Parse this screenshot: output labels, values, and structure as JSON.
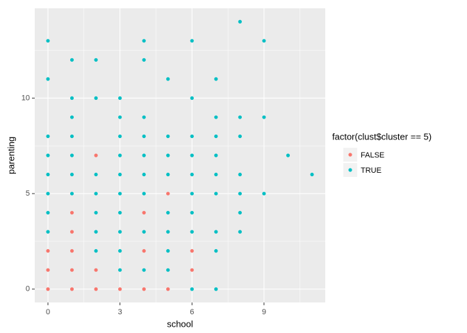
{
  "chart_data": {
    "type": "scatter",
    "x_label": "school",
    "y_label": "parenting",
    "legend_title": "factor(clust$cluster == 5)",
    "legend_position": "right",
    "xlim": [
      -0.55,
      11.55
    ],
    "ylim": [
      -0.7,
      14.7
    ],
    "xticks": [
      0,
      3,
      6,
      9
    ],
    "yticks": [
      0,
      5,
      10
    ],
    "grid": true,
    "series": [
      {
        "name": "FALSE",
        "color": "#F8766D",
        "x": [
          0,
          0,
          0,
          1,
          1,
          1,
          1,
          1,
          2,
          2,
          2,
          3,
          4,
          4,
          4,
          5,
          5,
          6,
          6
        ],
        "y": [
          2,
          1,
          0,
          4,
          3,
          2,
          1,
          0,
          7,
          1,
          0,
          0,
          4,
          2,
          0,
          5,
          0,
          2,
          1
        ]
      },
      {
        "name": "TRUE",
        "color": "#00BFC4",
        "x": [
          0,
          0,
          0,
          0,
          0,
          0,
          0,
          0,
          1,
          1,
          1,
          1,
          1,
          1,
          1,
          2,
          2,
          2,
          2,
          2,
          2,
          2,
          3,
          3,
          3,
          3,
          3,
          3,
          3,
          3,
          3,
          3,
          4,
          4,
          4,
          4,
          4,
          4,
          4,
          4,
          4,
          5,
          5,
          5,
          5,
          5,
          5,
          5,
          5,
          6,
          6,
          6,
          6,
          6,
          6,
          6,
          6,
          6,
          7,
          7,
          7,
          7,
          7,
          7,
          7,
          7,
          7,
          8,
          8,
          8,
          8,
          8,
          8,
          8,
          9,
          9,
          9,
          10,
          11
        ],
        "y": [
          13,
          11,
          8,
          7,
          6,
          5,
          4,
          3,
          12,
          10,
          9,
          8,
          7,
          6,
          5,
          12,
          10,
          6,
          5,
          4,
          3,
          2,
          10,
          9,
          8,
          7,
          6,
          5,
          4,
          3,
          2,
          1,
          13,
          12,
          9,
          8,
          7,
          6,
          5,
          3,
          1,
          11,
          8,
          7,
          6,
          4,
          3,
          2,
          1,
          13,
          10,
          8,
          7,
          6,
          5,
          4,
          3,
          0,
          11,
          9,
          8,
          7,
          6,
          5,
          3,
          2,
          0,
          14,
          9,
          8,
          6,
          5,
          4,
          3,
          13,
          9,
          5,
          7,
          6
        ]
      }
    ]
  }
}
